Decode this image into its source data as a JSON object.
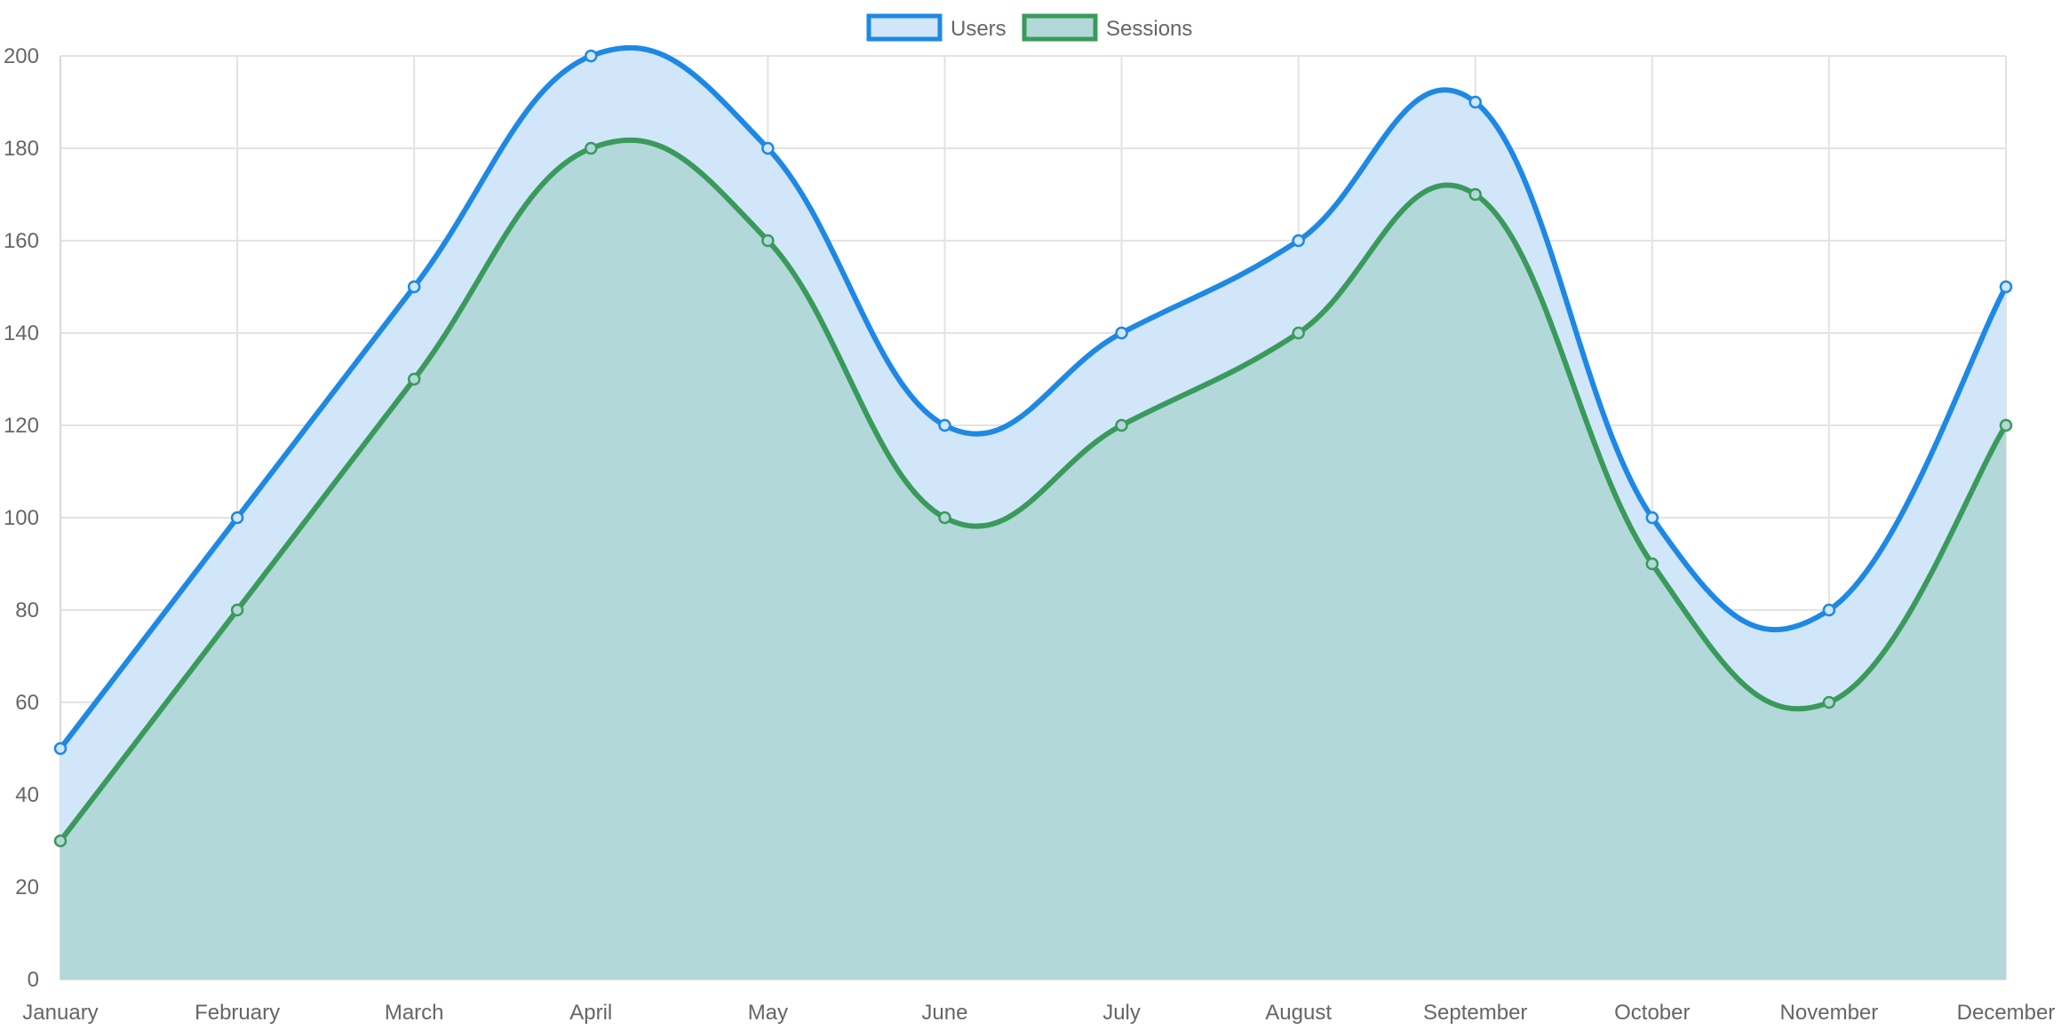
{
  "chart_data": {
    "type": "area",
    "categories": [
      "January",
      "February",
      "March",
      "April",
      "May",
      "June",
      "July",
      "August",
      "September",
      "October",
      "November",
      "December"
    ],
    "series": [
      {
        "name": "Users",
        "values": [
          50,
          100,
          150,
          200,
          180,
          120,
          140,
          160,
          190,
          100,
          80,
          150
        ],
        "line_color": "#1e88e5",
        "fill_color": "#d2e6fa"
      },
      {
        "name": "Sessions",
        "values": [
          30,
          80,
          130,
          180,
          160,
          100,
          120,
          140,
          170,
          90,
          60,
          120
        ],
        "line_color": "#3a9a5b",
        "fill_color": "#b2d8da"
      }
    ],
    "y_ticks": [
      "0",
      "20",
      "40",
      "60",
      "80",
      "100",
      "120",
      "140",
      "160",
      "180",
      "200"
    ],
    "ylim": [
      0,
      200
    ],
    "grid": true,
    "legend_position": "top-center",
    "smooth": true
  }
}
